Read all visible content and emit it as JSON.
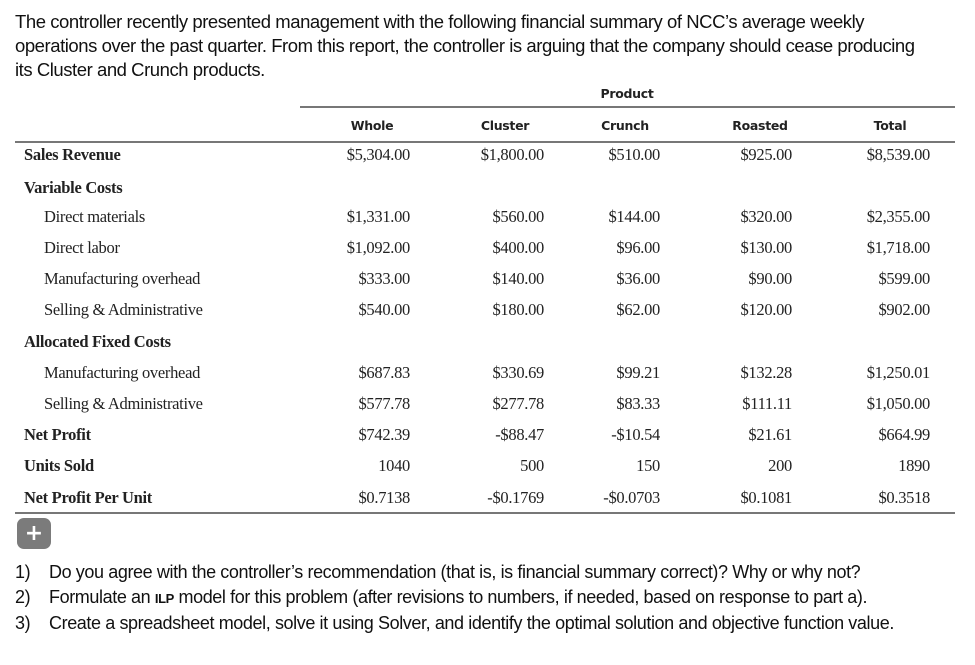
{
  "intro_lines": [
    "The controller recently presented management with the following financial summary of NCC’s average weekly",
    "operations over the past quarter. From this report, the controller is arguing that the company should cease producing",
    "its Cluster and Crunch products."
  ],
  "table": {
    "group_header": "Product",
    "columns": [
      "Whole",
      "Cluster",
      "Crunch",
      "Roasted",
      "Total"
    ],
    "rows": [
      {
        "label": "Sales Revenue",
        "style": "bold",
        "values": [
          "$5,304.00",
          "$1,800.00",
          "$510.00",
          "$925.00",
          "$8,539.00"
        ]
      },
      {
        "label": "Variable Costs",
        "style": "bold",
        "values": []
      },
      {
        "label": "Direct materials",
        "style": "indent",
        "values": [
          "$1,331.00",
          "$560.00",
          "$144.00",
          "$320.00",
          "$2,355.00"
        ]
      },
      {
        "label": "Direct labor",
        "style": "indent",
        "values": [
          "$1,092.00",
          "$400.00",
          "$96.00",
          "$130.00",
          "$1,718.00"
        ]
      },
      {
        "label": "Manufacturing overhead",
        "style": "indent",
        "values": [
          "$333.00",
          "$140.00",
          "$36.00",
          "$90.00",
          "$599.00"
        ]
      },
      {
        "label": "Selling & Administrative",
        "style": "indent",
        "values": [
          "$540.00",
          "$180.00",
          "$62.00",
          "$120.00",
          "$902.00"
        ]
      },
      {
        "label": "Allocated Fixed Costs",
        "style": "bold",
        "values": []
      },
      {
        "label": "Manufacturing overhead",
        "style": "indent",
        "values": [
          "$687.83",
          "$330.69",
          "$99.21",
          "$132.28",
          "$1,250.01"
        ]
      },
      {
        "label": "Selling & Administrative",
        "style": "indent",
        "values": [
          "$577.78",
          "$277.78",
          "$83.33",
          "$111.11",
          "$1,050.00"
        ]
      },
      {
        "label": "Net Profit",
        "style": "bold",
        "values": [
          "$742.39",
          "-$88.47",
          "-$10.54",
          "$21.61",
          "$664.99"
        ]
      },
      {
        "label": "Units Sold",
        "style": "bold",
        "values": [
          "1040",
          "500",
          "150",
          "200",
          "1890"
        ]
      },
      {
        "label": "Net Profit Per Unit",
        "style": "bold",
        "values": [
          "$0.7138",
          "-$0.1769",
          "-$0.0703",
          "$0.1081",
          "$0.3518"
        ]
      }
    ]
  },
  "expand_button": {
    "icon": "plus-icon",
    "glyph": "+"
  },
  "questions": [
    {
      "num": "1)",
      "pre": "Do you agree with the controller’s recommendation (that is, is financial summary correct)? Why or why not?",
      "abbr": "",
      "post": ""
    },
    {
      "num": "2)",
      "pre": "Formulate an ",
      "abbr": "ILP",
      "post": " model for this problem (after revisions to numbers, if needed, based on response to part a)."
    },
    {
      "num": "3)",
      "pre": "Create a spreadsheet model, solve it using Solver, and identify the optimal solution and objective function value.",
      "abbr": "",
      "post": ""
    }
  ]
}
